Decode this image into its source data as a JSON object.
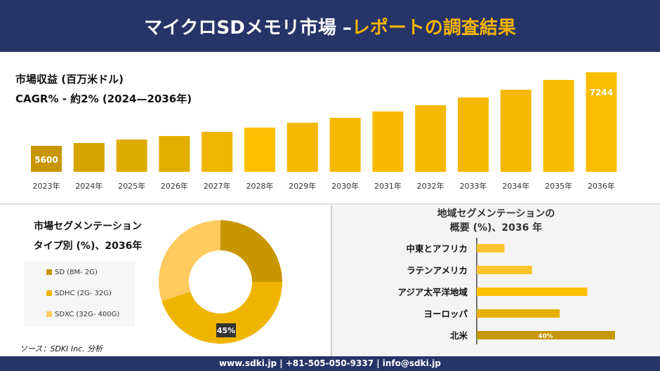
{
  "header": {
    "title_main": "マイクロSDメモリ市場 –",
    "title_accent": "レポートの調査結果"
  },
  "colors": {
    "navy": "#263468",
    "accent": "#f5b400",
    "sd": "#c89600",
    "sdhc": "#efb400",
    "sdxc": "#ffca5e"
  },
  "footer": {
    "text": "www.sdki.jp | +81-505-050-9337 | info@sdki.jp"
  },
  "source": "ソース：SDKI Inc. 分析",
  "chart_data": [
    {
      "type": "bar",
      "title": "市場収益 (百万米ドル)",
      "subtitle": "CAGR% - 約2% (2024—2036年)",
      "categories": [
        "2023年",
        "2024年",
        "2025年",
        "2026年",
        "2027年",
        "2028年",
        "2029年",
        "2030年",
        "2031年",
        "2032年",
        "2033年",
        "2034年",
        "2035年",
        "2036年"
      ],
      "values": [
        5600,
        5663,
        5741,
        5820,
        5914,
        6008,
        6117,
        6227,
        6368,
        6509,
        6681,
        6853,
        7072,
        7244
      ],
      "data_labels": {
        "0": "5600",
        "13": "7244"
      }
    },
    {
      "type": "pie",
      "title_line1": "市場セグメンテーション",
      "title_line2": "タイプ別 (%)、2036年",
      "labels": [
        "SD (8M- 2G)",
        "SDHC  (2G- 32G)",
        "SDXC (32G- 400G)"
      ],
      "values": [
        25,
        45,
        30
      ],
      "data_label": "45%",
      "hole": true
    },
    {
      "type": "bar",
      "orientation": "horizontal",
      "title_line1": "地域セグメンテーションの",
      "title_line2": "概要 (%)、2036 年",
      "categories": [
        "中東とアフリカ",
        "ラテンアメリカ",
        "アジア太平洋地域",
        "ヨーロッパ",
        "北米"
      ],
      "values": [
        8,
        16,
        32,
        24,
        40
      ],
      "data_label": "40%"
    }
  ]
}
